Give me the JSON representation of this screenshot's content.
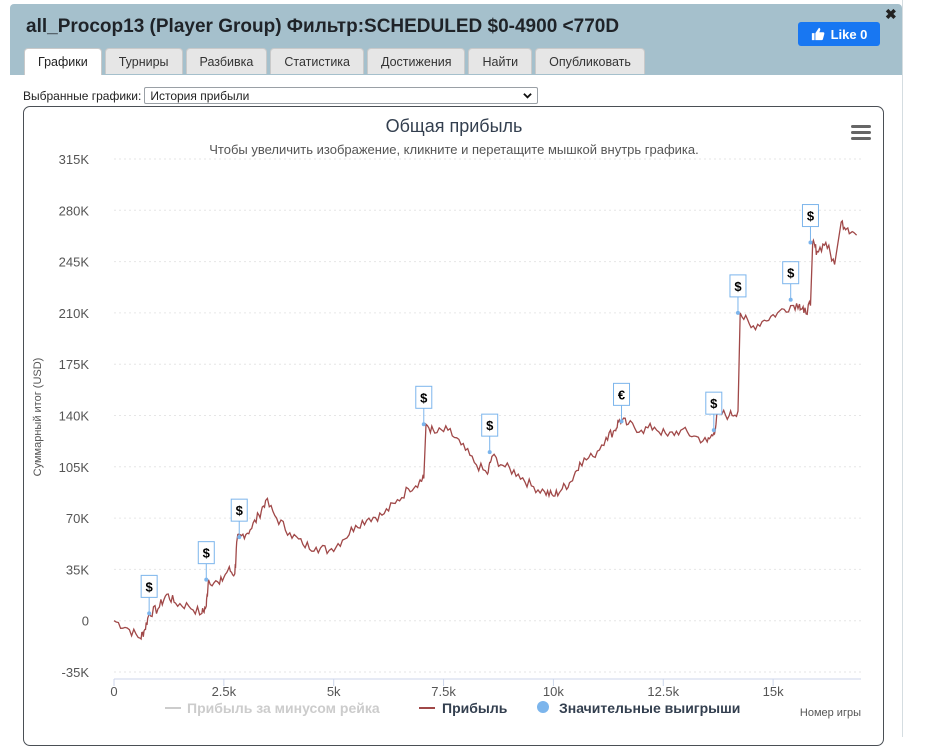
{
  "window": {
    "title": "all_Procop13 (Player Group) Фильтр:SCHEDULED $0-4900 <770D",
    "like_label": "Like 0",
    "close_label": "✖"
  },
  "tabs": [
    {
      "label": "Графики",
      "active": true
    },
    {
      "label": "Турниры",
      "active": false
    },
    {
      "label": "Разбивка",
      "active": false
    },
    {
      "label": "Статистика",
      "active": false
    },
    {
      "label": "Достижения",
      "active": false
    },
    {
      "label": "Найти",
      "active": false
    },
    {
      "label": "Опубликовать",
      "active": false
    }
  ],
  "selector": {
    "label": "Выбранные графики:",
    "value": "История прибыли"
  },
  "chart_data": {
    "type": "line",
    "title": "Общая прибыль",
    "subtitle": "Чтобы увеличить изображение, кликните и перетащите мышкой внутрь графика.",
    "xlabel": "Номер игры",
    "ylabel": "Суммарный итог (USD)",
    "xlim": [
      0,
      17000
    ],
    "ylim": [
      -35000,
      315000
    ],
    "x_ticks": [
      "0",
      "2.5k",
      "5k",
      "7.5k",
      "10k",
      "12.5k",
      "15k"
    ],
    "x_tick_values": [
      0,
      2500,
      5000,
      7500,
      10000,
      12500,
      15000
    ],
    "y_ticks": [
      "-35K",
      "0",
      "35K",
      "70K",
      "105K",
      "140K",
      "175K",
      "210K",
      "245K",
      "280K",
      "315K"
    ],
    "y_tick_values": [
      -35000,
      0,
      35000,
      70000,
      105000,
      140000,
      175000,
      210000,
      245000,
      280000,
      315000
    ],
    "grid": true,
    "legend_position": "bottom",
    "series": [
      {
        "name": "Прибыль за минусом рейка",
        "color": "#cccccc",
        "visible": false,
        "x": [],
        "values": []
      },
      {
        "name": "Прибыль",
        "color": "#a04848",
        "x": [
          0,
          300,
          600,
          700,
          800,
          1000,
          1200,
          1400,
          1700,
          2000,
          2100,
          2150,
          2400,
          2600,
          2750,
          2800,
          2900,
          3100,
          3300,
          3450,
          3700,
          4000,
          4300,
          4600,
          4900,
          5200,
          5500,
          5800,
          6100,
          6400,
          6700,
          6950,
          7050,
          7100,
          7300,
          7600,
          7900,
          8200,
          8500,
          8600,
          8900,
          9200,
          9500,
          9800,
          10000,
          10200,
          10400,
          10600,
          10900,
          11200,
          11400,
          11500,
          11700,
          12000,
          12300,
          12600,
          12900,
          13200,
          13500,
          13650,
          13750,
          14000,
          14200,
          14250,
          14500,
          14800,
          15100,
          15400,
          15600,
          15700,
          15850,
          15900,
          16000,
          16200,
          16400,
          16550,
          16700,
          16900
        ],
        "values": [
          0,
          -5000,
          -12000,
          -6000,
          5000,
          8000,
          18000,
          12000,
          10000,
          5000,
          10000,
          28000,
          25000,
          35000,
          32000,
          55000,
          58000,
          62000,
          72000,
          82000,
          70000,
          60000,
          52000,
          50000,
          48000,
          55000,
          65000,
          70000,
          72000,
          80000,
          90000,
          95000,
          97000,
          134000,
          128000,
          130000,
          120000,
          108000,
          100000,
          112000,
          105000,
          100000,
          92000,
          88000,
          85000,
          90000,
          95000,
          108000,
          112000,
          125000,
          130000,
          137000,
          134000,
          130000,
          132000,
          126000,
          130000,
          126000,
          122000,
          128000,
          142000,
          140000,
          143000,
          210000,
          200000,
          205000,
          210000,
          215000,
          216000,
          210000,
          215000,
          258000,
          252000,
          258000,
          243000,
          272000,
          268000,
          263000
        ]
      },
      {
        "name": "Значительные выигрыши",
        "color": "#7cb5ec",
        "type": "flags",
        "points": [
          {
            "x": 800,
            "y": 5000,
            "label": "$"
          },
          {
            "x": 2100,
            "y": 28000,
            "label": "$"
          },
          {
            "x": 2850,
            "y": 57000,
            "label": "$"
          },
          {
            "x": 7050,
            "y": 134000,
            "label": "$"
          },
          {
            "x": 8550,
            "y": 115000,
            "label": "$"
          },
          {
            "x": 11550,
            "y": 136000,
            "label": "€"
          },
          {
            "x": 13650,
            "y": 130000,
            "label": "$"
          },
          {
            "x": 14200,
            "y": 210000,
            "label": "$"
          },
          {
            "x": 15400,
            "y": 219000,
            "label": "$"
          },
          {
            "x": 15850,
            "y": 258000,
            "label": "$"
          }
        ]
      }
    ]
  }
}
